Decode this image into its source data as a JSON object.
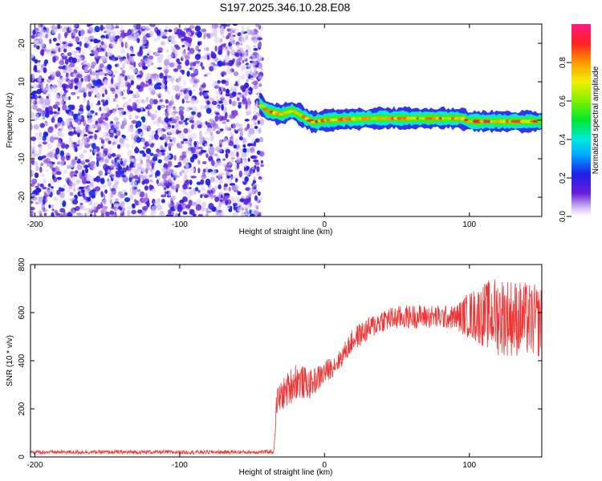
{
  "title": "S197.2025.346.10.28.E08",
  "chart_data": [
    {
      "type": "heatmap",
      "xlabel": "Height of straight line (km)",
      "ylabel": "Frequency (Hz)",
      "xlim": [
        -203,
        150
      ],
      "ylim": [
        -25,
        25
      ],
      "xticks": [
        -200,
        -100,
        0,
        100
      ],
      "yticks": [
        20,
        10,
        0,
        -10,
        -20
      ],
      "colorbar": {
        "label": "Normalized spectral amplitude",
        "range": [
          0,
          1
        ],
        "ticks": [
          "0.0",
          "0.2",
          "0.4",
          "0.6",
          "0.8"
        ]
      },
      "noise_region": {
        "x_range": [
          -203,
          -43
        ],
        "amplitude": [
          0.03,
          0.25
        ]
      },
      "signal_track": [
        {
          "x": -45,
          "freq": 4.5
        },
        {
          "x": -40,
          "freq": 2.5
        },
        {
          "x": -30,
          "freq": 1.5
        },
        {
          "x": -22,
          "freq": 2.5
        },
        {
          "x": -15,
          "freq": 1.0
        },
        {
          "x": -8,
          "freq": -0.5
        },
        {
          "x": 0,
          "freq": 0.0
        },
        {
          "x": 30,
          "freq": 0.5
        },
        {
          "x": 70,
          "freq": 0.5
        },
        {
          "x": 95,
          "freq": 0.5
        },
        {
          "x": 100,
          "freq": -0.3
        },
        {
          "x": 150,
          "freq": -0.3
        }
      ]
    },
    {
      "type": "line",
      "xlabel": "Height of straight line (km)",
      "ylabel": "SNR (10 * v/v)",
      "xlim": [
        -203,
        150
      ],
      "ylim": [
        0,
        800
      ],
      "xticks": [
        -200,
        -100,
        0,
        100
      ],
      "yticks": [
        0,
        200,
        400,
        600,
        800
      ],
      "color": "#ef3434",
      "series": [
        {
          "values_envelope": [
            {
              "x": -203,
              "mean": 20,
              "spread": 8
            },
            {
              "x": -45,
              "mean": 20,
              "spread": 8
            },
            {
              "x": -35,
              "mean": 22,
              "spread": 8
            },
            {
              "x": -33,
              "mean": 230,
              "spread": 60
            },
            {
              "x": -20,
              "mean": 320,
              "spread": 80
            },
            {
              "x": -10,
              "mean": 300,
              "spread": 60
            },
            {
              "x": 0,
              "mean": 350,
              "spread": 50
            },
            {
              "x": 10,
              "mean": 400,
              "spread": 40
            },
            {
              "x": 20,
              "mean": 490,
              "spread": 50
            },
            {
              "x": 40,
              "mean": 570,
              "spread": 50
            },
            {
              "x": 60,
              "mean": 585,
              "spread": 50
            },
            {
              "x": 90,
              "mean": 580,
              "spread": 50
            },
            {
              "x": 100,
              "mean": 590,
              "spread": 100
            },
            {
              "x": 120,
              "mean": 590,
              "spread": 170
            },
            {
              "x": 150,
              "mean": 560,
              "spread": 150
            }
          ]
        }
      ]
    }
  ]
}
